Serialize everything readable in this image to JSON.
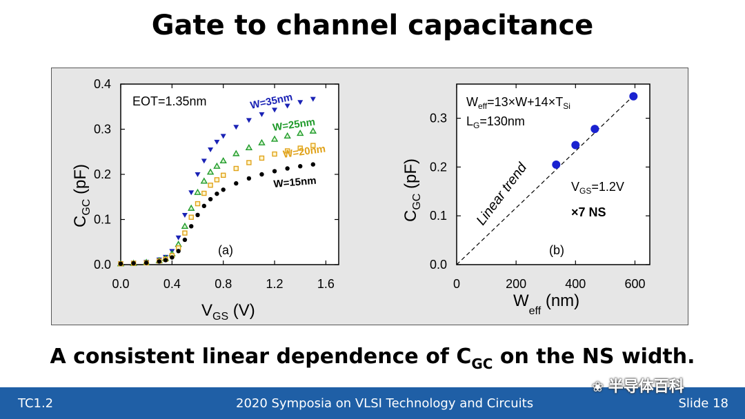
{
  "slide": {
    "title": "Gate to channel capacitance",
    "caption_pre": "A consistent linear dependence of C",
    "caption_sub": "GC",
    "caption_post": " on the NS width."
  },
  "footer": {
    "left": "TC1.2",
    "center": "2020 Symposia on VLSI Technology and Circuits",
    "right": "Slide 18",
    "watermark": "半导体百科"
  },
  "chart_data": [
    {
      "type": "scatter",
      "panel_label": "(a)",
      "annotation": "EOT=1.35nm",
      "xlabel_main": "V",
      "xlabel_sub": "GS",
      "xlabel_unit": " (V)",
      "ylabel_main": "C",
      "ylabel_sub": "GC",
      "ylabel_unit": " (pF)",
      "xlim": [
        0.0,
        1.7
      ],
      "ylim": [
        0.0,
        0.4
      ],
      "xticks": [
        "0.0",
        "0.4",
        "0.8",
        "1.2",
        "1.6"
      ],
      "yticks": [
        "0.0",
        "0.1",
        "0.2",
        "0.3",
        "0.4"
      ],
      "grid": false,
      "series": [
        {
          "name": "W=35nm",
          "color": "#1a22b5",
          "marker": "triangle-down",
          "x": [
            0.0,
            0.1,
            0.2,
            0.3,
            0.35,
            0.4,
            0.45,
            0.5,
            0.55,
            0.6,
            0.65,
            0.7,
            0.75,
            0.8,
            0.9,
            1.0,
            1.1,
            1.2,
            1.3,
            1.4,
            1.5
          ],
          "y": [
            0.003,
            0.004,
            0.006,
            0.011,
            0.017,
            0.03,
            0.06,
            0.11,
            0.16,
            0.2,
            0.23,
            0.255,
            0.272,
            0.285,
            0.305,
            0.32,
            0.333,
            0.343,
            0.352,
            0.36,
            0.367
          ]
        },
        {
          "name": "W=25nm",
          "color": "#1f9a2a",
          "marker": "triangle-up",
          "x": [
            0.0,
            0.1,
            0.2,
            0.3,
            0.35,
            0.4,
            0.45,
            0.5,
            0.55,
            0.6,
            0.65,
            0.7,
            0.75,
            0.8,
            0.9,
            1.0,
            1.1,
            1.2,
            1.3,
            1.4,
            1.5
          ],
          "y": [
            0.002,
            0.003,
            0.005,
            0.009,
            0.014,
            0.024,
            0.045,
            0.085,
            0.125,
            0.16,
            0.185,
            0.205,
            0.218,
            0.23,
            0.246,
            0.259,
            0.27,
            0.278,
            0.285,
            0.291,
            0.296
          ]
        },
        {
          "name": "W=20nm",
          "color": "#e0a21a",
          "marker": "square",
          "x": [
            0.0,
            0.1,
            0.2,
            0.3,
            0.35,
            0.4,
            0.45,
            0.5,
            0.55,
            0.6,
            0.65,
            0.7,
            0.75,
            0.8,
            0.9,
            1.0,
            1.1,
            1.2,
            1.3,
            1.4,
            1.5
          ],
          "y": [
            0.002,
            0.003,
            0.004,
            0.008,
            0.012,
            0.02,
            0.037,
            0.07,
            0.105,
            0.135,
            0.158,
            0.176,
            0.188,
            0.198,
            0.213,
            0.226,
            0.236,
            0.245,
            0.252,
            0.258,
            0.264
          ]
        },
        {
          "name": "W=15nm",
          "color": "#000000",
          "marker": "circle",
          "x": [
            0.0,
            0.1,
            0.2,
            0.3,
            0.35,
            0.4,
            0.45,
            0.5,
            0.55,
            0.6,
            0.65,
            0.7,
            0.75,
            0.8,
            0.9,
            1.0,
            1.1,
            1.2,
            1.3,
            1.4,
            1.5
          ],
          "y": [
            0.002,
            0.003,
            0.004,
            0.007,
            0.01,
            0.016,
            0.03,
            0.055,
            0.085,
            0.11,
            0.13,
            0.145,
            0.157,
            0.166,
            0.18,
            0.191,
            0.2,
            0.207,
            0.213,
            0.218,
            0.222
          ]
        }
      ]
    },
    {
      "type": "scatter",
      "panel_label": "(b)",
      "annotation_lines": [
        "W",
        "eff",
        "=13×W+14×T",
        "Si",
        "L",
        "G",
        "=130nm"
      ],
      "vgs_main": "V",
      "vgs_sub": "GS",
      "vgs_val": "=1.2V",
      "ns_label": "×7 NS",
      "trend_label": "Linear trend",
      "xlabel_main": "W",
      "xlabel_sub": "eff",
      "xlabel_unit": " (nm)",
      "ylabel_main": "C",
      "ylabel_sub": "GC",
      "ylabel_unit": " (pF)",
      "xlim": [
        0,
        650
      ],
      "ylim": [
        0.0,
        0.37
      ],
      "xticks": [
        "0",
        "200",
        "400",
        "600"
      ],
      "yticks": [
        "0.0",
        "0.1",
        "0.2",
        "0.3"
      ],
      "grid": false,
      "points": {
        "color": "#1a22d0",
        "x": [
          335,
          400,
          465,
          595
        ],
        "y": [
          0.205,
          0.245,
          0.278,
          0.345
        ]
      },
      "trend": {
        "x": [
          0,
          600
        ],
        "y": [
          0.0,
          0.349
        ]
      }
    }
  ]
}
